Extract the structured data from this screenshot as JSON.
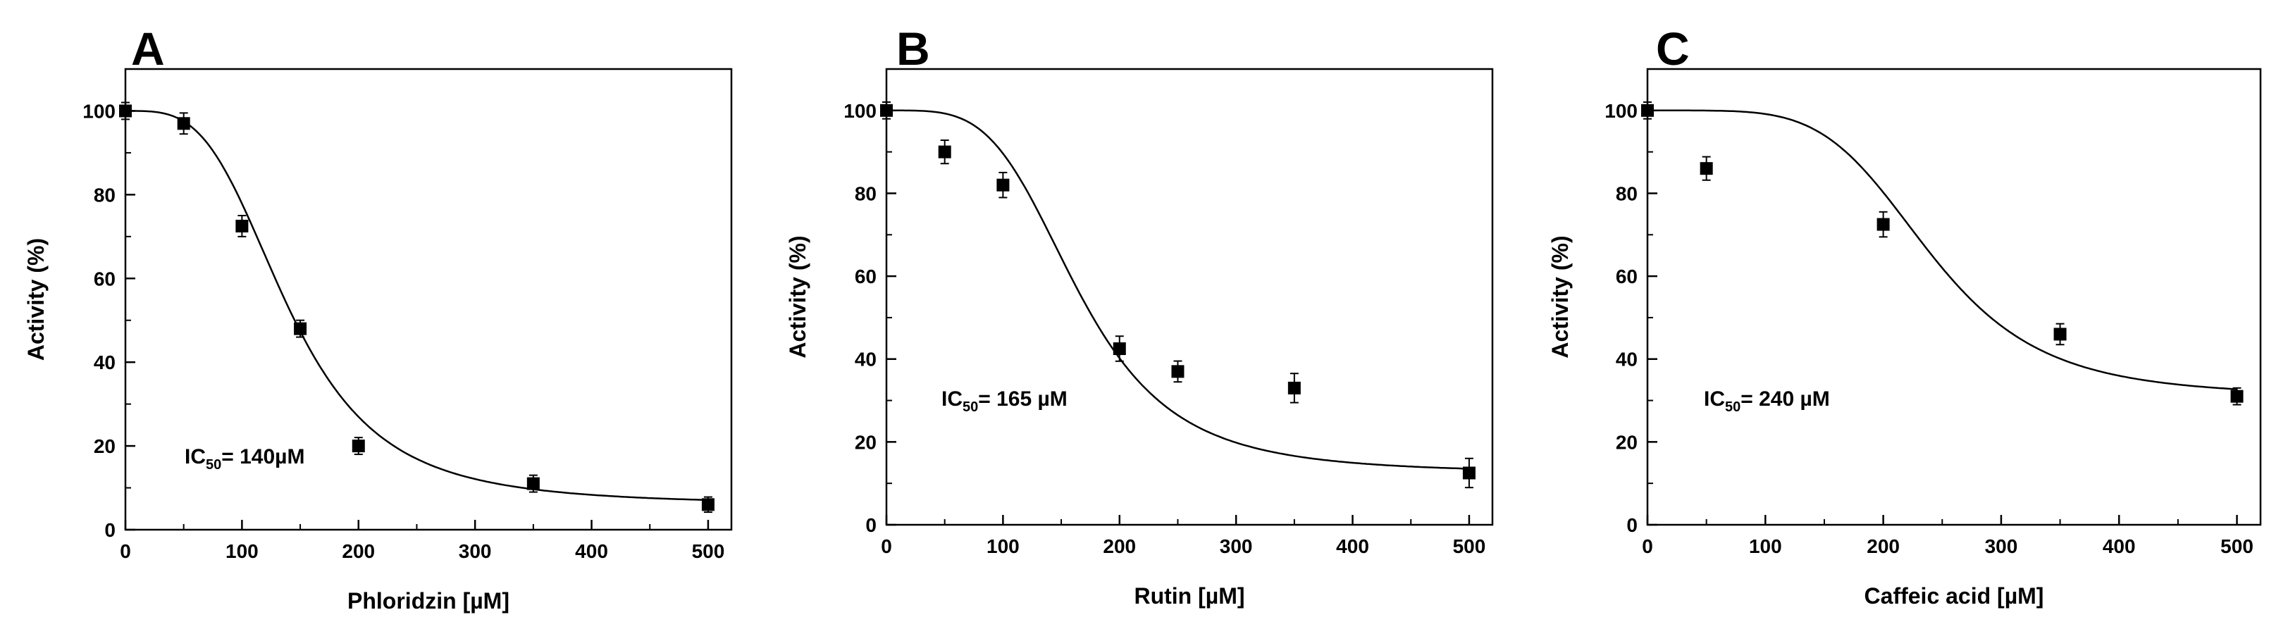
{
  "chart_data": [
    {
      "type": "scatter",
      "panel_label": "A",
      "xlabel": "Phloridzin [µM]",
      "ylabel": "Activity (%)",
      "xlim": [
        0,
        520
      ],
      "ylim": [
        0,
        110
      ],
      "x_ticks": [
        "0",
        "100",
        "200",
        "300",
        "400",
        "500"
      ],
      "y_ticks": [
        "0",
        "20",
        "40",
        "60",
        "80",
        "100"
      ],
      "annotation": {
        "prefix": "IC",
        "sub": "50",
        "text": "= 140µM"
      },
      "points": [
        {
          "x": 0,
          "y": 100,
          "err": 1
        },
        {
          "x": 50,
          "y": 97,
          "err": 1.5
        },
        {
          "x": 100,
          "y": 72.5,
          "err": 1.5
        },
        {
          "x": 150,
          "y": 48,
          "err": 1
        },
        {
          "x": 200,
          "y": 20,
          "err": 1
        },
        {
          "x": 350,
          "y": 11,
          "err": 1
        },
        {
          "x": 500,
          "y": 6,
          "err": 0.8
        }
      ],
      "fit": {
        "top": 100,
        "bottom": 6,
        "ic50": 140,
        "hill": 3.5
      },
      "grid": false
    },
    {
      "type": "scatter",
      "panel_label": "B",
      "xlabel": "Rutin [µM]",
      "ylabel": "Activity (%)",
      "xlim": [
        0,
        520
      ],
      "ylim": [
        0,
        110
      ],
      "x_ticks": [
        "0",
        "100",
        "200",
        "300",
        "400",
        "500"
      ],
      "y_ticks": [
        "0",
        "20",
        "40",
        "60",
        "80",
        "100"
      ],
      "annotation": {
        "prefix": "IC",
        "sub": "50",
        "text": "= 165 µM"
      },
      "points": [
        {
          "x": 0,
          "y": 100,
          "err": 1
        },
        {
          "x": 50,
          "y": 90,
          "err": 1.8
        },
        {
          "x": 100,
          "y": 82,
          "err": 2
        },
        {
          "x": 200,
          "y": 42.5,
          "err": 2
        },
        {
          "x": 250,
          "y": 37,
          "err": 1.5
        },
        {
          "x": 350,
          "y": 33,
          "err": 2.5
        },
        {
          "x": 500,
          "y": 12.5,
          "err": 2.5
        }
      ],
      "fit": {
        "top": 100,
        "bottom": 12.5,
        "ic50": 165,
        "hill": 4
      },
      "grid": false
    },
    {
      "type": "scatter",
      "panel_label": "C",
      "xlabel": "Caffeic acid [µM]",
      "ylabel": "Activity (%)",
      "xlim": [
        0,
        520
      ],
      "ylim": [
        0,
        110
      ],
      "x_ticks": [
        "0",
        "100",
        "200",
        "300",
        "400",
        "500"
      ],
      "y_ticks": [
        "0",
        "20",
        "40",
        "60",
        "80",
        "100"
      ],
      "annotation": {
        "prefix": "IC",
        "sub": "50",
        "text": "= 240 µM"
      },
      "points": [
        {
          "x": 0,
          "y": 100,
          "err": 1
        },
        {
          "x": 50,
          "y": 86,
          "err": 1.8
        },
        {
          "x": 200,
          "y": 72.5,
          "err": 2
        },
        {
          "x": 350,
          "y": 46,
          "err": 1.5
        },
        {
          "x": 500,
          "y": 31,
          "err": 1
        }
      ],
      "fit": {
        "top": 100,
        "bottom": 31,
        "ic50": 240,
        "hill": 5
      },
      "grid": false
    }
  ]
}
